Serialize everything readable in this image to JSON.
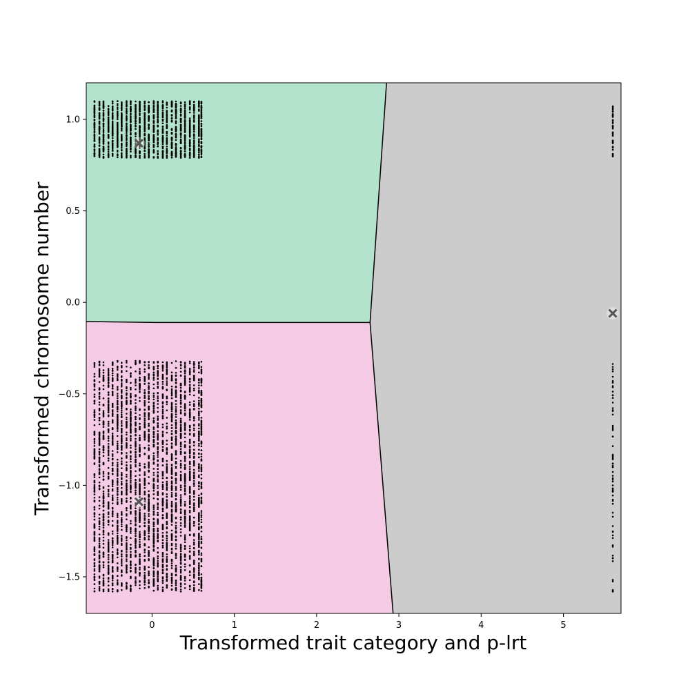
{
  "chart_data": {
    "type": "scatter",
    "title": "",
    "xlabel": "Transformed trait category and p-lrt",
    "ylabel": "Transformed chromosome number",
    "xlim": [
      -0.8,
      5.7
    ],
    "ylim": [
      -1.7,
      1.2
    ],
    "x_ticks": [
      0,
      1,
      2,
      3,
      4,
      5
    ],
    "x_tick_labels": [
      "0",
      "1",
      "2",
      "3",
      "4",
      "5"
    ],
    "y_ticks": [
      -1.5,
      -1.0,
      -0.5,
      0.0,
      0.5,
      1.0
    ],
    "y_tick_labels": [
      "−1.5",
      "−1.0",
      "−0.5",
      "0.0",
      "0.5",
      "1.0"
    ],
    "grid": false,
    "colors": {
      "upper_left_region": "#b3e2cd",
      "lower_left_region": "#f4cae4",
      "right_region": "#cccccc",
      "points": "#000000",
      "centroids": "#555555",
      "boundary": "#000000"
    },
    "regions": [
      {
        "polygon": [
          [
            -0.8,
            1.2
          ],
          [
            2.85,
            1.2
          ],
          [
            2.65,
            -0.11
          ],
          [
            0.05,
            -0.11
          ],
          [
            -0.8,
            -0.105
          ]
        ],
        "color": "#b3e2cd"
      },
      {
        "polygon": [
          [
            -0.8,
            -0.105
          ],
          [
            0.05,
            -0.11
          ],
          [
            2.65,
            -0.11
          ],
          [
            2.93,
            -1.7
          ],
          [
            -0.8,
            -1.7
          ]
        ],
        "color": "#f4cae4"
      },
      {
        "polygon": [
          [
            2.85,
            1.2
          ],
          [
            5.7,
            1.2
          ],
          [
            5.7,
            -1.7
          ],
          [
            2.93,
            -1.7
          ],
          [
            2.65,
            -0.11
          ]
        ],
        "color": "#cccccc"
      }
    ],
    "boundaries": [
      [
        [
          -0.8,
          -0.105
        ],
        [
          0.05,
          -0.11
        ],
        [
          2.65,
          -0.11
        ]
      ],
      [
        [
          2.85,
          1.2
        ],
        [
          2.65,
          -0.11
        ],
        [
          2.93,
          -1.7
        ]
      ]
    ],
    "centroids": [
      {
        "x": -0.16,
        "y": 0.87
      },
      {
        "x": -0.16,
        "y": -1.09
      },
      {
        "x": 5.6,
        "y": -0.06
      }
    ],
    "point_columns": {
      "x": [
        -0.7,
        -0.64,
        -0.59,
        -0.53,
        -0.48,
        -0.42,
        -0.37,
        -0.31,
        -0.26,
        -0.2,
        -0.15,
        -0.09,
        -0.04,
        0.02,
        0.07,
        0.13,
        0.18,
        0.24,
        0.29,
        0.35,
        0.4,
        0.46,
        0.51,
        0.57,
        0.6,
        5.6
      ],
      "upper_y_range": [
        0.79,
        1.1
      ],
      "lower_y_range": [
        -1.58,
        -0.32
      ],
      "right_upper_y_range": [
        0.79,
        1.08
      ],
      "right_lower_y_range": [
        -1.59,
        -0.32
      ]
    }
  }
}
